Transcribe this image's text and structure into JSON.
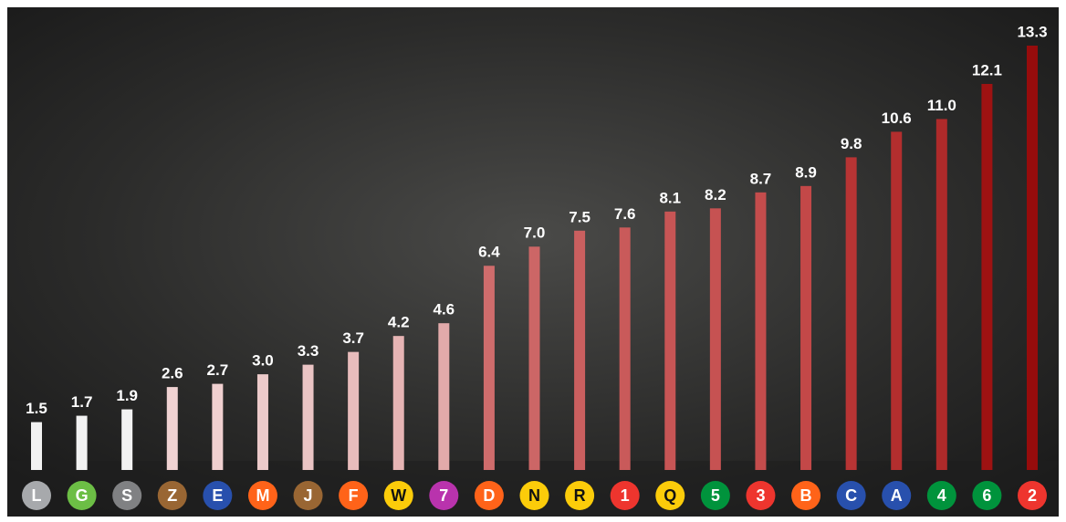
{
  "chart_data": {
    "type": "bar",
    "categories": [
      "L",
      "G",
      "S",
      "Z",
      "E",
      "M",
      "J",
      "F",
      "W",
      "7",
      "D",
      "N",
      "R",
      "1",
      "Q",
      "5",
      "3",
      "B",
      "C",
      "A",
      "4",
      "6",
      "2"
    ],
    "values": [
      1.5,
      1.7,
      1.9,
      2.6,
      2.7,
      3.0,
      3.3,
      3.7,
      4.2,
      4.6,
      6.4,
      7.0,
      7.5,
      7.6,
      8.1,
      8.2,
      8.7,
      8.9,
      9.8,
      10.6,
      11.0,
      12.1,
      13.3
    ],
    "value_labels": [
      "1.5",
      "1.7",
      "1.9",
      "2.6",
      "2.7",
      "3.0",
      "3.3",
      "3.7",
      "4.2",
      "4.6",
      "6.4",
      "7.0",
      "7.5",
      "7.6",
      "8.1",
      "8.2",
      "8.7",
      "8.9",
      "9.8",
      "10.6",
      "11.0",
      "12.1",
      "13.3"
    ],
    "colors": [
      "#f2f2f2",
      "#f2f2f2",
      "#f2f2f2",
      "#f0d2d2",
      "#f0d0d0",
      "#eccaca",
      "#eac4c4",
      "#e8bcbc",
      "#e6b4b4",
      "#e2aaaa",
      "#cf6c6c",
      "#cc6666",
      "#ca5f5f",
      "#c95a5a",
      "#c75555",
      "#c65252",
      "#c44c4c",
      "#c34848",
      "#b83434",
      "#b32e2e",
      "#ae2a2a",
      "#9e1212",
      "#960c0c"
    ],
    "badge_colors": [
      "#a7a9ac",
      "#6cbe45",
      "#808183",
      "#996633",
      "#2850ad",
      "#ff6319",
      "#996633",
      "#ff6319",
      "#fccc0a",
      "#b933ad",
      "#ff6319",
      "#fccc0a",
      "#fccc0a",
      "#ee352e",
      "#fccc0a",
      "#00933c",
      "#ee352e",
      "#ff6319",
      "#2850ad",
      "#2850ad",
      "#00933c",
      "#00933c",
      "#ee352e"
    ]
  }
}
